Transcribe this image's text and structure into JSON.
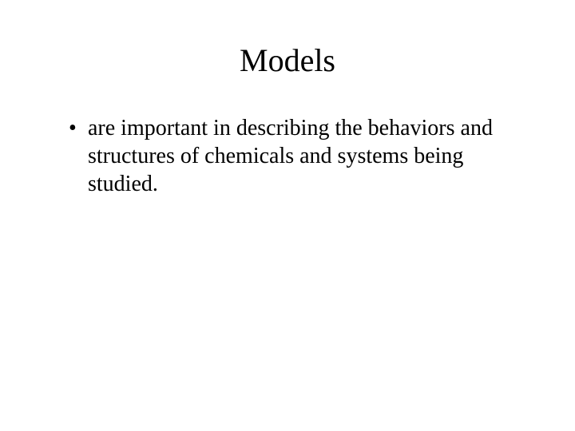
{
  "slide": {
    "title": "Models",
    "bullets": [
      {
        "text": "are important in describing the behaviors and structures of chemicals and systems being studied."
      }
    ],
    "background_color": "#ffffff",
    "text_color": "#000000",
    "title_fontsize": 40,
    "body_fontsize": 28,
    "font_family": "Times New Roman"
  }
}
